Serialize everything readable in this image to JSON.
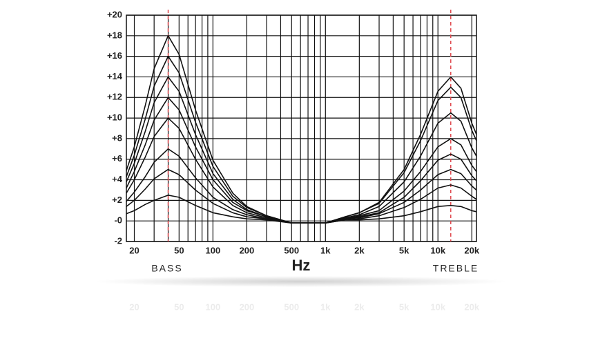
{
  "chart_data": {
    "type": "line",
    "log_x": true,
    "x_label": "Hz",
    "annotations": [
      "BASS",
      "TREBLE"
    ],
    "x": [
      17,
      20,
      25,
      30,
      40,
      50,
      70,
      100,
      150,
      200,
      300,
      500,
      700,
      1000,
      1500,
      2000,
      3000,
      5000,
      7000,
      10000,
      13000,
      16000,
      20000,
      22000
    ],
    "series": [
      {
        "color": "#111111",
        "values": [
          4.9,
          7.2,
          11.2,
          14.8,
          18,
          16.2,
          10.8,
          5.9,
          2.7,
          1.4,
          0.5,
          -0.2,
          -0.2,
          -0.2,
          0.4,
          0.8,
          1.8,
          5,
          8.4,
          12.6,
          14,
          12.9,
          9.5,
          8.4
        ]
      },
      {
        "color": "#111111",
        "values": [
          4.3,
          6.4,
          9.9,
          13.1,
          16,
          14.4,
          9.6,
          5.3,
          2.4,
          1.3,
          0.5,
          -0.2,
          -0.2,
          -0.2,
          0.4,
          0.8,
          1.7,
          4.7,
          7.8,
          11.7,
          13,
          12,
          8.8,
          7.8
        ]
      },
      {
        "color": "#111111",
        "values": [
          3.8,
          5.6,
          8.7,
          11.5,
          14,
          12.6,
          8.4,
          4.6,
          2.1,
          1.1,
          0.4,
          -0.2,
          -0.2,
          -0.2,
          0.3,
          0.6,
          1.4,
          3.8,
          6.3,
          9.5,
          10.5,
          9.7,
          7.1,
          6.3
        ]
      },
      {
        "color": "#111111",
        "values": [
          3.2,
          4.8,
          7.4,
          9.8,
          12,
          10.8,
          7.2,
          4,
          1.8,
          1,
          0.4,
          -0.2,
          -0.2,
          -0.2,
          0.2,
          0.5,
          1,
          2.9,
          4.8,
          7.2,
          8,
          7.4,
          5.4,
          4.8
        ]
      },
      {
        "color": "#111111",
        "values": [
          2.7,
          4,
          6.2,
          8.2,
          10,
          9,
          6,
          3.3,
          1.5,
          0.8,
          0.3,
          -0.2,
          -0.2,
          -0.2,
          0.2,
          0.4,
          0.8,
          2.3,
          3.9,
          5.9,
          6.5,
          6,
          4.4,
          3.9
        ]
      },
      {
        "color": "#111111",
        "values": [
          1.9,
          2.8,
          4.3,
          5.7,
          7,
          6.3,
          4.2,
          2.3,
          1.1,
          0.6,
          0.2,
          -0.2,
          -0.2,
          -0.2,
          0.2,
          0.3,
          0.7,
          1.8,
          3,
          4.5,
          5,
          4.6,
          3.4,
          3
        ]
      },
      {
        "color": "#111111",
        "values": [
          1.4,
          2,
          3.1,
          4.1,
          5,
          4.5,
          3,
          1.7,
          0.8,
          0.4,
          0.2,
          -0.2,
          -0.2,
          -0.2,
          0.1,
          0.2,
          0.5,
          1.3,
          2.1,
          3.2,
          3.5,
          3.2,
          2.4,
          2.1
        ]
      },
      {
        "color": "#111111",
        "values": [
          0.7,
          1,
          1.6,
          2,
          2.5,
          2.3,
          1.5,
          0.8,
          0.4,
          0.2,
          0.1,
          -0.2,
          -0.2,
          -0.2,
          0.1,
          0.1,
          0.2,
          0.5,
          0.9,
          1.4,
          1.5,
          1.4,
          1,
          0.9
        ]
      }
    ],
    "xlim": [
      17,
      22000
    ],
    "ylim": [
      -2,
      20
    ],
    "xticks": [
      20,
      50,
      100,
      200,
      500,
      {
        "value": 1000,
        "label": "1k"
      },
      {
        "value": 2000,
        "label": "2k"
      },
      {
        "value": 5000,
        "label": "5k"
      },
      {
        "value": 10000,
        "label": "10k"
      },
      {
        "value": 20000,
        "label": "20k"
      }
    ],
    "yticks": [
      {
        "value": -2,
        "label": "-2"
      },
      {
        "value": 0,
        "label": "-0"
      },
      {
        "value": 2,
        "label": "+2"
      },
      {
        "value": 4,
        "label": "+4"
      },
      {
        "value": 6,
        "label": "+6"
      },
      {
        "value": 8,
        "label": "+8"
      },
      {
        "value": 10,
        "label": "+10"
      },
      {
        "value": 12,
        "label": "+12"
      },
      {
        "value": 14,
        "label": "+14"
      },
      {
        "value": 16,
        "label": "+16"
      },
      {
        "value": 18,
        "label": "+18"
      },
      {
        "value": 20,
        "label": "+20"
      }
    ],
    "xgrid": [
      20,
      30,
      40,
      50,
      60,
      70,
      80,
      90,
      100,
      200,
      300,
      400,
      500,
      600,
      700,
      800,
      900,
      1000,
      2000,
      3000,
      4000,
      5000,
      6000,
      7000,
      8000,
      9000,
      10000,
      20000
    ],
    "grid": true,
    "reference_lines": [
      40,
      13000
    ],
    "reference_color": "#e0474c"
  }
}
